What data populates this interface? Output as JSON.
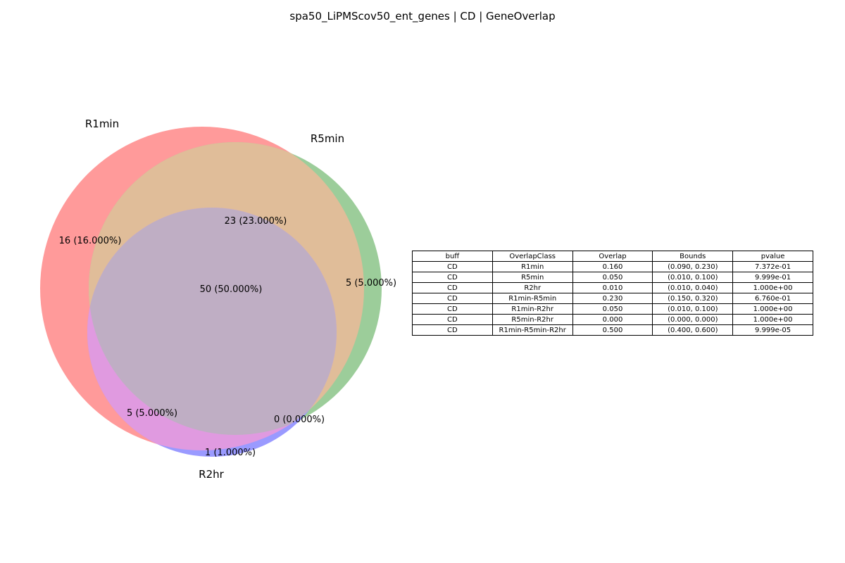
{
  "title": "spa50_LiPMScov50_ent_genes | CD | GeneOverlap",
  "colors": {
    "r1min": "#ff9a9a",
    "r5min": "#9ccd9a",
    "r2hr": "#9a9aff",
    "r1min_r5min": "#e0bd99",
    "r1min_r2hr": "#e09ae0",
    "all_three": "#bfaec4"
  },
  "venn": {
    "set_labels": {
      "r1min": "R1min",
      "r5min": "R5min",
      "r2hr": "R2hr"
    },
    "regions": {
      "r1min_only": "16 (16.000%)",
      "r5min_only": "5 (5.000%)",
      "r2hr_only": "1 (1.000%)",
      "r1min_r5min": "23 (23.000%)",
      "r1min_r2hr": "5 (5.000%)",
      "r5min_r2hr": "0 (0.000%)",
      "all_three": "50 (50.000%)"
    }
  },
  "table": {
    "headers": [
      "buff",
      "OverlapClass",
      "Overlap",
      "Bounds",
      "pvalue"
    ],
    "rows": [
      [
        "CD",
        "R1min",
        "0.160",
        "(0.090, 0.230)",
        "7.372e-01"
      ],
      [
        "CD",
        "R5min",
        "0.050",
        "(0.010, 0.100)",
        "9.999e-01"
      ],
      [
        "CD",
        "R2hr",
        "0.010",
        "(0.010, 0.040)",
        "1.000e+00"
      ],
      [
        "CD",
        "R1min-R5min",
        "0.230",
        "(0.150, 0.320)",
        "6.760e-01"
      ],
      [
        "CD",
        "R1min-R2hr",
        "0.050",
        "(0.010, 0.100)",
        "1.000e+00"
      ],
      [
        "CD",
        "R5min-R2hr",
        "0.000",
        "(0.000, 0.000)",
        "1.000e+00"
      ],
      [
        "CD",
        "R1min-R5min-R2hr",
        "0.500",
        "(0.400, 0.600)",
        "9.999e-05"
      ]
    ]
  }
}
